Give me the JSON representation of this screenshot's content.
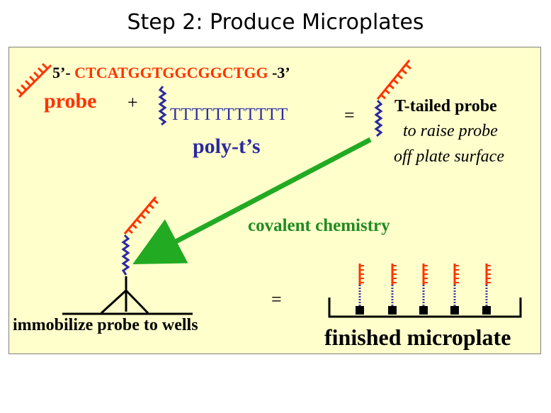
{
  "title": "Step 2: Produce Microplates",
  "sequence": {
    "prefix": "5’- ",
    "dna": "CTCATGGTGGCGGCTGG",
    "suffix": " -3’"
  },
  "probe_label": "probe",
  "plus_sign": "+",
  "poly_t_sequence": "TTTTTTTTTTT",
  "poly_t_label": "poly-t’s",
  "equals_sign": "=",
  "t_tailed_title": "T-tailed probe",
  "t_tailed_line2": "to raise probe",
  "t_tailed_line3": "off plate surface",
  "arrow_label": "covalent chemistry",
  "equals_sign_2": "=",
  "immobilize_label": "immobilize probe to wells",
  "finished_label": "finished microplate",
  "colors": {
    "probe": "#ff3300",
    "polyt": "#2a2aa0",
    "arrow": "#22aa22",
    "panel": "#ffffcc"
  }
}
